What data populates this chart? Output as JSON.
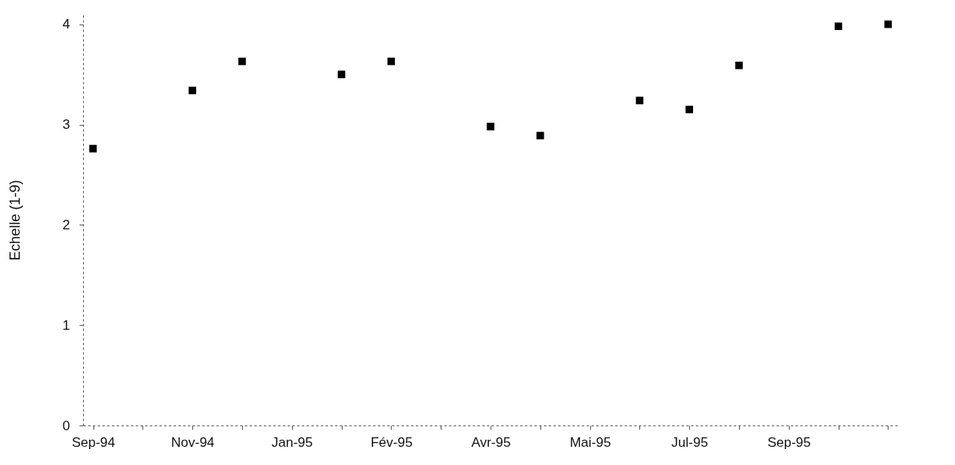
{
  "chart_data": {
    "type": "scatter",
    "ylabel": "Echelle (1-9)",
    "categories": [
      "Sep-94",
      null,
      "Nov-94",
      null,
      "Jan-95",
      null,
      "Fév-95",
      null,
      "Avr-95",
      null,
      "Mai-95",
      null,
      "Jul-95",
      null,
      "Sep-95",
      null,
      null
    ],
    "series": [
      {
        "color": "#000000",
        "values": [
          2.76,
          null,
          3.34,
          3.63,
          null,
          3.5,
          3.63,
          null,
          2.98,
          2.89,
          null,
          3.24,
          3.15,
          3.59,
          null,
          3.98,
          4.0
        ]
      }
    ],
    "ylim": [
      0,
      4.1
    ],
    "yticks": [
      0,
      1,
      2,
      3,
      4
    ],
    "marker": "square",
    "grid": false
  }
}
